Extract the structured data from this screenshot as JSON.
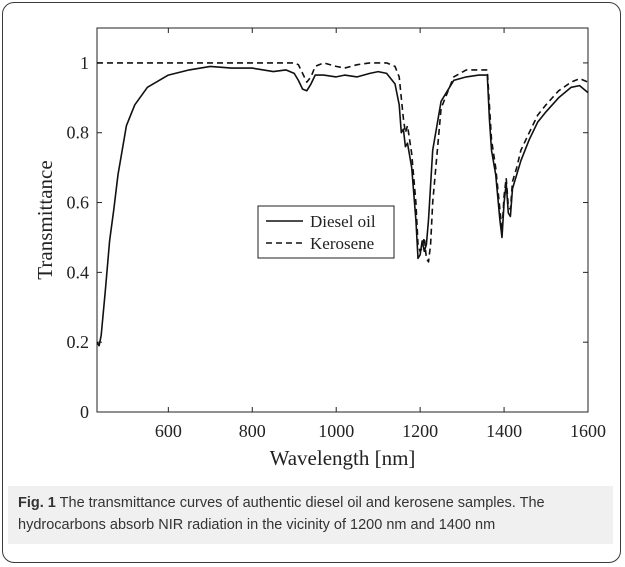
{
  "chart_data": {
    "type": "line",
    "title": "",
    "xlabel": "Wavelength [nm]",
    "ylabel": "Transmittance",
    "xlim": [
      430,
      1600
    ],
    "ylim": [
      0,
      1.1
    ],
    "xticks": [
      600,
      800,
      1000,
      1200,
      1400,
      1600
    ],
    "yticks": [
      0,
      0.2,
      0.4,
      0.6,
      0.8,
      1
    ],
    "xtick_labels": [
      "600",
      "800",
      "1000",
      "1200",
      "1400",
      "1600"
    ],
    "ytick_labels": [
      "0",
      "0.2",
      "0.4",
      "0.6",
      "0.8",
      "1"
    ],
    "legend": {
      "placement": "center"
    },
    "series": [
      {
        "name": "Diesel oil",
        "style": "solid",
        "x": [
          430,
          435,
          440,
          450,
          460,
          470,
          480,
          490,
          500,
          520,
          550,
          600,
          650,
          700,
          750,
          800,
          850,
          880,
          900,
          910,
          920,
          930,
          940,
          950,
          970,
          1000,
          1020,
          1050,
          1080,
          1100,
          1120,
          1140,
          1150,
          1155,
          1160,
          1165,
          1170,
          1180,
          1190,
          1195,
          1200,
          1205,
          1210,
          1215,
          1220,
          1230,
          1250,
          1280,
          1310,
          1340,
          1360,
          1365,
          1370,
          1380,
          1390,
          1395,
          1400,
          1405,
          1410,
          1415,
          1420,
          1430,
          1440,
          1460,
          1480,
          1500,
          1530,
          1560,
          1580,
          1600
        ],
        "y": [
          0.2,
          0.19,
          0.22,
          0.35,
          0.49,
          0.58,
          0.68,
          0.75,
          0.82,
          0.88,
          0.93,
          0.965,
          0.98,
          0.99,
          0.985,
          0.985,
          0.975,
          0.98,
          0.97,
          0.95,
          0.925,
          0.92,
          0.94,
          0.965,
          0.965,
          0.96,
          0.965,
          0.96,
          0.97,
          0.975,
          0.97,
          0.94,
          0.88,
          0.8,
          0.81,
          0.76,
          0.77,
          0.7,
          0.55,
          0.44,
          0.45,
          0.49,
          0.46,
          0.48,
          0.55,
          0.75,
          0.89,
          0.95,
          0.96,
          0.965,
          0.965,
          0.84,
          0.75,
          0.68,
          0.55,
          0.5,
          0.6,
          0.655,
          0.57,
          0.56,
          0.64,
          0.68,
          0.72,
          0.78,
          0.83,
          0.86,
          0.9,
          0.93,
          0.935,
          0.915
        ]
      },
      {
        "name": "Kerosene",
        "style": "dashed",
        "x": [
          430,
          500,
          600,
          700,
          800,
          850,
          880,
          900,
          910,
          920,
          930,
          940,
          950,
          970,
          1000,
          1020,
          1050,
          1080,
          1100,
          1120,
          1140,
          1150,
          1160,
          1165,
          1170,
          1180,
          1190,
          1195,
          1200,
          1205,
          1210,
          1215,
          1220,
          1225,
          1230,
          1250,
          1280,
          1310,
          1340,
          1360,
          1365,
          1370,
          1380,
          1390,
          1395,
          1400,
          1405,
          1410,
          1415,
          1420,
          1430,
          1440,
          1460,
          1480,
          1500,
          1530,
          1560,
          1580,
          1600
        ],
        "y": [
          1.0,
          1.0,
          1.0,
          1.0,
          1.0,
          1.0,
          1.0,
          1.0,
          0.995,
          0.97,
          0.945,
          0.96,
          0.99,
          1.0,
          0.99,
          0.985,
          0.995,
          1.0,
          1.0,
          1.0,
          0.99,
          0.96,
          0.84,
          0.8,
          0.82,
          0.74,
          0.6,
          0.48,
          0.46,
          0.47,
          0.5,
          0.44,
          0.43,
          0.48,
          0.6,
          0.87,
          0.96,
          0.98,
          0.98,
          0.98,
          0.88,
          0.78,
          0.7,
          0.58,
          0.52,
          0.62,
          0.67,
          0.59,
          0.58,
          0.66,
          0.7,
          0.75,
          0.8,
          0.85,
          0.88,
          0.92,
          0.945,
          0.955,
          0.945
        ]
      }
    ]
  },
  "caption": {
    "label": "Fig. 1",
    "text": " The transmittance curves of authentic diesel oil and kerosene samples. The hydrocarbons absorb NIR radiation in the vicinity of 1200 nm and 1400 nm"
  }
}
